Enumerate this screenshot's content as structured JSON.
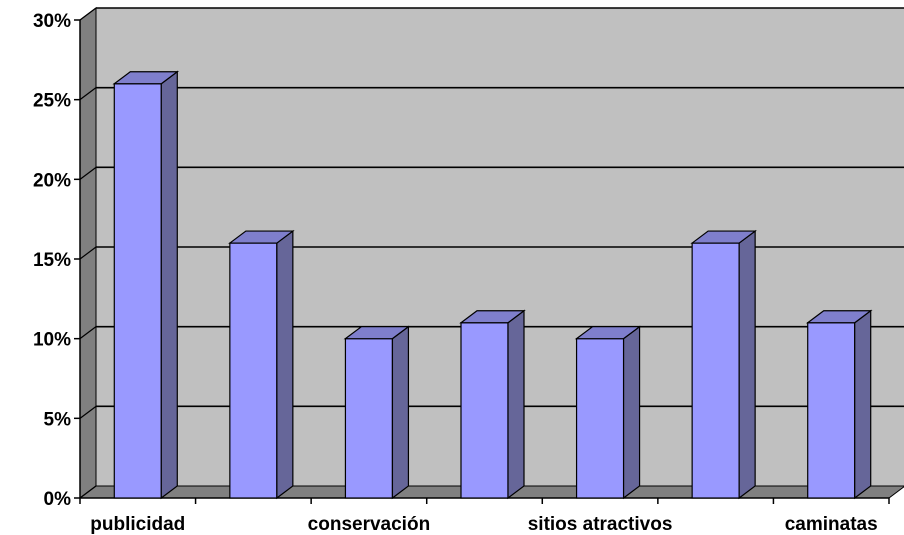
{
  "chart_data": {
    "type": "bar",
    "style": "3d-column",
    "categories": [
      "publicidad",
      "",
      "conservación",
      "",
      "sitios atractivos",
      "",
      "caminatas"
    ],
    "values": [
      26,
      16,
      10,
      11,
      10,
      16,
      11
    ],
    "ylim": [
      0,
      30
    ],
    "yticks": [
      "0%",
      "5%",
      "10%",
      "15%",
      "20%",
      "25%",
      "30%"
    ],
    "ytick_values": [
      0,
      5,
      10,
      15,
      20,
      25,
      30
    ],
    "grid": true,
    "title": "",
    "xlabel": "",
    "ylabel": "",
    "colors": {
      "bar_front": "#9999ff",
      "bar_side": "#666699",
      "bar_top": "#7f7fcc",
      "wall": "#c0c0c0",
      "wall_side": "#808080",
      "floor": "#808080"
    }
  }
}
